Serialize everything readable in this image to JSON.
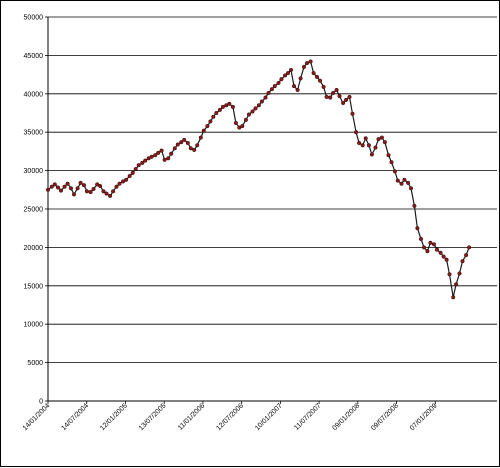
{
  "chart_data": {
    "type": "line",
    "title": "",
    "xlabel": "",
    "ylabel": "",
    "ylim": [
      0,
      50000
    ],
    "y_ticks": [
      "0",
      "5000",
      "10000",
      "15000",
      "20000",
      "25000",
      "30000",
      "35000",
      "40000",
      "45000",
      "50000"
    ],
    "x_tick_labels": [
      "14/01/2004",
      "14/07/2004",
      "12/01/2005",
      "13/07/2005",
      "11/01/2006",
      "12/07/2006",
      "10/01/2007",
      "11/07/2007",
      "09/01/2008",
      "09/07/2008",
      "07/01/2009"
    ],
    "grid": true,
    "legend": "none",
    "series": [
      {
        "color": "#8B1A1A",
        "marker": "circle",
        "x": [
          "14/01/2004",
          "01/02/2004",
          "15/02/2004",
          "01/03/2004",
          "15/03/2004",
          "01/04/2004",
          "15/04/2004",
          "01/05/2004",
          "15/05/2004",
          "01/06/2004",
          "15/06/2004",
          "01/07/2004",
          "15/07/2004",
          "01/08/2004",
          "15/08/2004",
          "01/09/2004",
          "15/09/2004",
          "01/10/2004",
          "15/10/2004",
          "01/11/2004",
          "15/11/2004",
          "01/12/2004",
          "15/12/2004",
          "01/01/2005",
          "15/01/2005",
          "01/02/2005",
          "15/02/2005",
          "01/03/2005",
          "15/03/2005",
          "01/04/2005",
          "15/04/2005",
          "01/05/2005",
          "15/05/2005",
          "01/06/2005",
          "15/06/2005",
          "01/07/2005",
          "15/07/2005",
          "01/08/2005",
          "15/08/2005",
          "01/09/2005",
          "15/09/2005",
          "01/10/2005",
          "15/10/2005",
          "01/11/2005",
          "15/11/2005",
          "01/12/2005",
          "15/12/2005",
          "01/01/2006",
          "15/01/2006",
          "01/02/2006",
          "15/02/2006",
          "01/03/2006",
          "15/03/2006",
          "01/04/2006",
          "15/04/2006",
          "01/05/2006",
          "15/05/2006",
          "01/06/2006",
          "15/06/2006",
          "01/07/2006",
          "15/07/2006",
          "01/08/2006",
          "15/08/2006",
          "01/09/2006",
          "15/09/2006",
          "01/10/2006",
          "15/10/2006",
          "01/11/2006",
          "15/11/2006",
          "01/12/2006",
          "15/12/2006",
          "01/01/2007",
          "15/01/2007",
          "01/02/2007",
          "15/02/2007",
          "01/03/2007",
          "15/03/2007",
          "01/04/2007",
          "15/04/2007",
          "01/05/2007",
          "15/05/2007",
          "01/06/2007",
          "15/06/2007",
          "01/07/2007",
          "15/07/2007",
          "01/08/2007",
          "15/08/2007",
          "01/09/2007",
          "15/09/2007",
          "01/10/2007",
          "15/10/2007",
          "01/11/2007",
          "15/11/2007",
          "01/12/2007",
          "15/12/2007",
          "01/01/2008",
          "15/01/2008",
          "01/02/2008",
          "15/02/2008",
          "01/03/2008",
          "15/03/2008",
          "01/04/2008",
          "15/04/2008",
          "01/05/2008",
          "15/05/2008",
          "01/06/2008",
          "15/06/2008",
          "01/07/2008",
          "15/07/2008",
          "01/08/2008",
          "15/08/2008",
          "01/09/2008",
          "15/09/2008",
          "01/10/2008",
          "15/10/2008",
          "01/11/2008",
          "15/11/2008",
          "01/12/2008",
          "15/12/2008",
          "01/01/2009",
          "15/01/2009",
          "01/02/2009",
          "15/02/2009",
          "01/03/2009",
          "15/03/2009",
          "01/04/2009",
          "15/04/2009",
          "01/05/2009",
          "15/05/2009",
          "01/06/2009",
          "15/06/2009"
        ],
        "values": [
          27500,
          27900,
          28200,
          27800,
          27400,
          27900,
          28300,
          27700,
          26900,
          27700,
          28400,
          28100,
          27300,
          27200,
          27600,
          28200,
          28000,
          27300,
          27000,
          26700,
          27300,
          27900,
          28300,
          28600,
          28800,
          29300,
          29700,
          30200,
          30700,
          31000,
          31300,
          31600,
          31800,
          32000,
          32300,
          32600,
          31400,
          31600,
          32200,
          32900,
          33400,
          33700,
          34000,
          33600,
          32900,
          32700,
          33300,
          34300,
          35200,
          35800,
          36400,
          37000,
          37500,
          37900,
          38300,
          38500,
          38700,
          38300,
          36200,
          35600,
          35800,
          36600,
          37300,
          37700,
          38100,
          38500,
          39000,
          39500,
          40100,
          40600,
          41000,
          41400,
          41900,
          42400,
          42700,
          43100,
          41000,
          40500,
          42000,
          43500,
          44000,
          44200,
          42700,
          42200,
          41700,
          40900,
          39600,
          39500,
          40100,
          40500,
          39700,
          38800,
          39200,
          39600,
          37400,
          35000,
          33600,
          33300,
          34200,
          33300,
          32100,
          33000,
          34100,
          34300,
          33700,
          32000,
          31100,
          29900,
          28700,
          28300,
          28800,
          28400,
          27700,
          25400,
          22500,
          21100,
          20000,
          19500,
          20600,
          20400,
          19700,
          19300,
          18800,
          18400,
          16500,
          13500,
          15200,
          16600,
          18200,
          19000,
          20000
        ]
      }
    ]
  }
}
